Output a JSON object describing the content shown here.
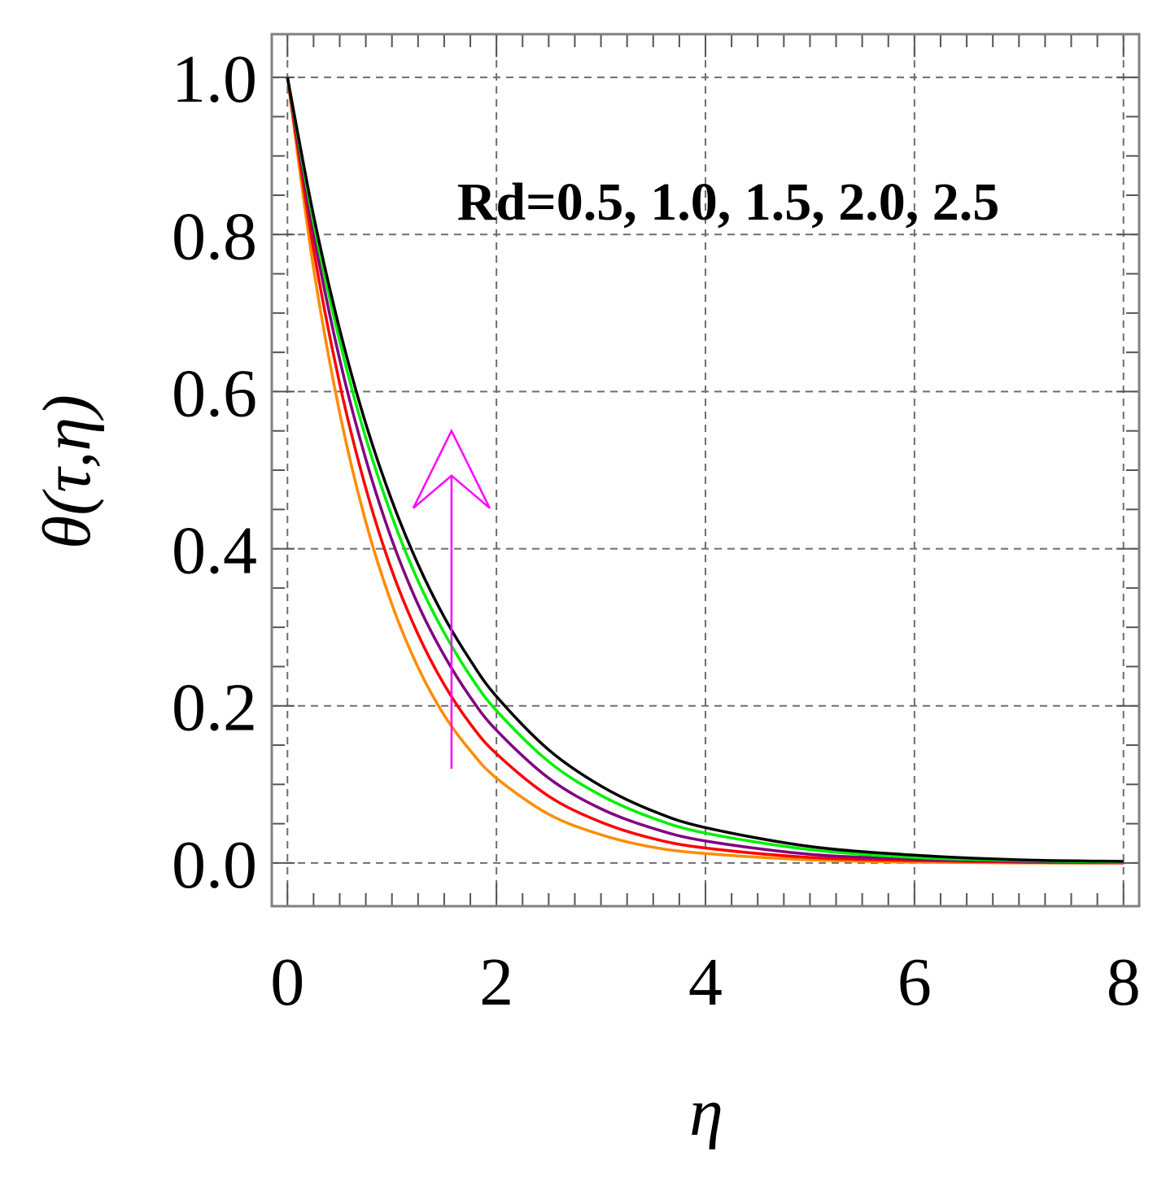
{
  "chart_data": {
    "type": "line",
    "xlabel": "η",
    "ylabel": "θ(τ,η)",
    "xlim": [
      -0.15,
      8.15
    ],
    "ylim": [
      -0.055,
      1.055
    ],
    "x_ticks": [
      "0",
      "2",
      "4",
      "6",
      "8"
    ],
    "y_ticks": [
      "0.0",
      "0.2",
      "0.4",
      "0.6",
      "0.8",
      "1.0"
    ],
    "x_tick_values": [
      0,
      2,
      4,
      6,
      8
    ],
    "y_tick_values": [
      0,
      0.2,
      0.4,
      0.6,
      0.8,
      1.0
    ],
    "grid": true,
    "annotation": "Rd=0.5, 1.0, 1.5, 2.0, 2.5",
    "arrow": {
      "x": 1.57,
      "y_from": 0.12,
      "y_to": 0.55,
      "color": "#ff00ff"
    },
    "x": [
      0,
      0.25,
      0.5,
      0.75,
      1.0,
      1.25,
      1.5,
      1.75,
      2.0,
      2.5,
      3.0,
      3.5,
      4.0,
      5.0,
      6.0,
      7.0,
      8.0
    ],
    "series": [
      {
        "color": "#ff8c00",
        "values": [
          1.0,
          0.757,
          0.573,
          0.434,
          0.329,
          0.249,
          0.188,
          0.143,
          0.108,
          0.062,
          0.036,
          0.02,
          0.012,
          0.004,
          0.001,
          0.0,
          0.0
        ]
      },
      {
        "color": "#ff0000",
        "values": [
          1.0,
          0.781,
          0.61,
          0.477,
          0.372,
          0.291,
          0.227,
          0.177,
          0.139,
          0.085,
          0.052,
          0.031,
          0.019,
          0.007,
          0.003,
          0.001,
          0.0
        ]
      },
      {
        "color": "#800080",
        "values": [
          1.0,
          0.801,
          0.641,
          0.514,
          0.411,
          0.329,
          0.264,
          0.211,
          0.169,
          0.108,
          0.069,
          0.044,
          0.028,
          0.011,
          0.005,
          0.002,
          0.001
        ]
      },
      {
        "color": "#00ee00",
        "values": [
          1.0,
          0.815,
          0.664,
          0.541,
          0.441,
          0.359,
          0.293,
          0.238,
          0.194,
          0.129,
          0.086,
          0.057,
          0.038,
          0.017,
          0.007,
          0.003,
          0.001
        ]
      },
      {
        "color": "#000000",
        "values": [
          1.0,
          0.824,
          0.679,
          0.559,
          0.461,
          0.38,
          0.313,
          0.258,
          0.212,
          0.144,
          0.098,
          0.066,
          0.045,
          0.021,
          0.01,
          0.004,
          0.002
        ]
      }
    ]
  }
}
